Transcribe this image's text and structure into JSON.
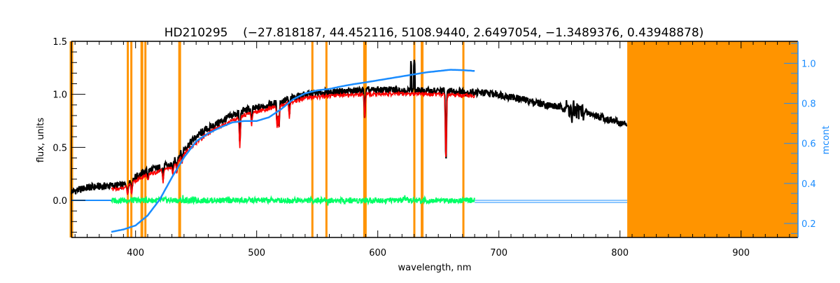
{
  "chart_data": {
    "type": "line",
    "title": "HD210295    (−27.818187, 44.452116, 5108.9440, 2.6497054, −1.3489376, 0.43948878)",
    "xlabel": "wavelength, nm",
    "ylabel": "flux, units",
    "y2label": "mcont",
    "xlim": [
      347,
      947
    ],
    "ylim": [
      -0.35,
      1.5
    ],
    "y2lim": [
      0.13,
      1.11
    ],
    "x_ticks": [
      "400",
      "500",
      "600",
      "700",
      "800",
      "900"
    ],
    "x_tick_values": [
      400,
      500,
      600,
      700,
      800,
      900
    ],
    "y_ticks": [
      "0.0",
      "0.5",
      "1.0",
      "1.5"
    ],
    "y_tick_values": [
      0.0,
      0.5,
      1.0,
      1.5
    ],
    "y2_ticks": [
      "0.2",
      "0.4",
      "0.6",
      "0.8",
      "1.0"
    ],
    "y2_tick_values": [
      0.2,
      0.4,
      0.6,
      0.8,
      1.0
    ],
    "masked_lines_nm": [
      347,
      393.6,
      396.5,
      405.2,
      408.1,
      436.4,
      546.0,
      557.6,
      589.4,
      630.2,
      636.6,
      670.7
    ],
    "masked_band_nm": [
      806,
      947
    ],
    "colors": {
      "observed": "#000000",
      "model": "#ff0000",
      "residual": "#00ff66",
      "mcont": "#1a8cff",
      "mask": "#ff9400"
    },
    "series": [
      {
        "name": "observed flux",
        "x": [
          347,
          360,
          380,
          390,
          400,
          410,
          420,
          430,
          440,
          450,
          460,
          470,
          480,
          490,
          500,
          520,
          540,
          560,
          580,
          600,
          620,
          640,
          660,
          680,
          700,
          720,
          740,
          760,
          780,
          800,
          806
        ],
        "y": [
          0.08,
          0.12,
          0.14,
          0.14,
          0.22,
          0.28,
          0.31,
          0.34,
          0.48,
          0.6,
          0.68,
          0.74,
          0.8,
          0.85,
          0.87,
          0.93,
          1.0,
          1.02,
          1.03,
          1.04,
          1.04,
          1.03,
          1.03,
          1.02,
          1.0,
          0.95,
          0.9,
          0.86,
          0.8,
          0.73,
          0.71
        ]
      },
      {
        "name": "model flux",
        "x": [
          380,
          390,
          400,
          410,
          420,
          430,
          440,
          450,
          460,
          470,
          480,
          490,
          500,
          520,
          540,
          560,
          580,
          600,
          620,
          640,
          660,
          680
        ],
        "y": [
          0.12,
          0.13,
          0.2,
          0.26,
          0.29,
          0.32,
          0.45,
          0.56,
          0.65,
          0.71,
          0.77,
          0.82,
          0.85,
          0.91,
          0.98,
          1.0,
          1.01,
          1.02,
          1.02,
          1.02,
          1.01,
          1.0
        ]
      },
      {
        "name": "mcont",
        "axis": "y2",
        "x": [
          380,
          390,
          400,
          410,
          420,
          430,
          440,
          450,
          460,
          470,
          480,
          490,
          500,
          510,
          520,
          530,
          540,
          550,
          560,
          570,
          580,
          590,
          600,
          620,
          640,
          660,
          670,
          680
        ],
        "y": [
          0.158,
          0.17,
          0.19,
          0.24,
          0.32,
          0.43,
          0.53,
          0.61,
          0.65,
          0.68,
          0.705,
          0.712,
          0.712,
          0.73,
          0.77,
          0.82,
          0.85,
          0.865,
          0.872,
          0.885,
          0.896,
          0.905,
          0.915,
          0.935,
          0.955,
          0.968,
          0.966,
          0.962
        ]
      },
      {
        "name": "residual",
        "x": [
          380,
          680
        ],
        "y": [
          0.0,
          0.0
        ]
      },
      {
        "name": "zero line",
        "x": [
          347,
          380,
          680,
          806
        ],
        "y": [
          0.0,
          0.0,
          0.0,
          0.0
        ]
      }
    ],
    "absorption_lines": [
      {
        "nm": 393.4,
        "depth": 0.1
      },
      {
        "nm": 396.8,
        "depth": 0.1
      },
      {
        "nm": 410.2,
        "depth": 0.06
      },
      {
        "nm": 422.7,
        "depth": 0.12
      },
      {
        "nm": 430.8,
        "depth": 0.08
      },
      {
        "nm": 434.0,
        "depth": 0.1
      },
      {
        "nm": 438.4,
        "depth": 0.08
      },
      {
        "nm": 486.1,
        "depth": 0.3
      },
      {
        "nm": 495.8,
        "depth": 0.12
      },
      {
        "nm": 516.9,
        "depth": 0.22
      },
      {
        "nm": 518.4,
        "depth": 0.22
      },
      {
        "nm": 527.0,
        "depth": 0.15
      },
      {
        "nm": 589.3,
        "depth": 0.25
      },
      {
        "nm": 656.3,
        "depth": 0.66
      },
      {
        "nm": 760.5,
        "depth": 0.12
      }
    ],
    "emission_spikes": [
      {
        "nm": 627.5,
        "height": 0.27
      },
      {
        "nm": 630.2,
        "height": 0.26
      }
    ]
  }
}
